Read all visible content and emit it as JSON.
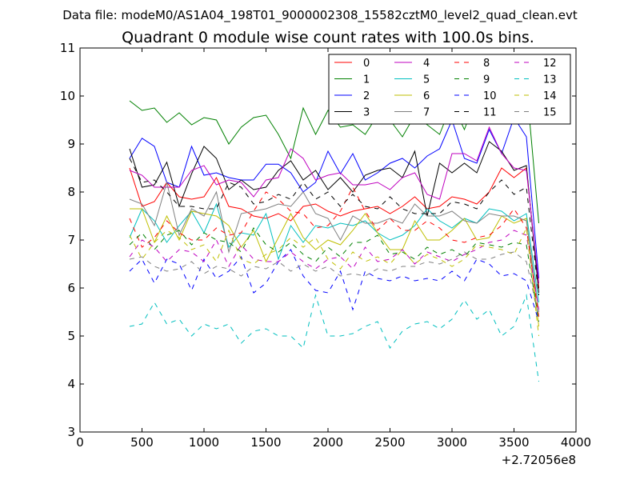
{
  "chart_data": {
    "type": "line",
    "suptitle": "Data file: modeM0/AS1A04_198T01_9000002308_15582cztM0_level2_quad_clean.evt",
    "title": "Quadrant 0 module wise count rates with 100.0s bins.",
    "xlabel": "",
    "ylabel": "",
    "x_offset_label": "+2.72056e8",
    "xlim": [
      0,
      4000
    ],
    "ylim": [
      3,
      11
    ],
    "xticks": [
      0,
      500,
      1000,
      1500,
      2000,
      2500,
      3000,
      3500,
      4000
    ],
    "yticks": [
      3,
      4,
      5,
      6,
      7,
      8,
      9,
      10,
      11
    ],
    "grid": false,
    "legend_position": "top-right",
    "legend_columns": 4,
    "x": [
      400,
      500,
      600,
      700,
      800,
      900,
      1000,
      1100,
      1200,
      1300,
      1400,
      1500,
      1600,
      1700,
      1800,
      1900,
      2000,
      2100,
      2200,
      2300,
      2400,
      2500,
      2600,
      2700,
      2800,
      2900,
      3000,
      3100,
      3200,
      3300,
      3400,
      3500,
      3600,
      3700
    ],
    "series": [
      {
        "name": "0",
        "color": "#ff0000",
        "dash": "solid",
        "values": [
          8.5,
          7.7,
          7.8,
          8.2,
          7.9,
          7.85,
          7.9,
          8.3,
          7.7,
          7.65,
          7.5,
          7.45,
          7.55,
          7.4,
          7.7,
          7.75,
          7.6,
          7.5,
          7.6,
          7.65,
          7.7,
          7.55,
          7.7,
          7.9,
          7.65,
          7.7,
          7.9,
          7.85,
          7.75,
          8.0,
          8.5,
          8.3,
          8.5,
          6.0
        ]
      },
      {
        "name": "1",
        "color": "#008000",
        "dash": "solid",
        "values": [
          9.9,
          9.7,
          9.75,
          9.45,
          9.65,
          9.4,
          9.55,
          9.5,
          9.0,
          9.35,
          9.55,
          9.6,
          9.2,
          8.7,
          9.75,
          9.2,
          9.7,
          9.35,
          9.4,
          9.2,
          9.6,
          9.5,
          9.15,
          9.6,
          9.4,
          9.2,
          9.85,
          9.3,
          10.0,
          9.8,
          9.9,
          9.75,
          10.25,
          7.35
        ]
      },
      {
        "name": "2",
        "color": "#0000ff",
        "dash": "solid",
        "values": [
          8.7,
          9.12,
          8.95,
          8.2,
          8.1,
          8.95,
          8.35,
          8.4,
          8.3,
          8.25,
          8.25,
          8.58,
          8.58,
          8.4,
          8.0,
          8.2,
          8.85,
          8.38,
          8.8,
          8.25,
          8.4,
          8.6,
          8.7,
          8.5,
          8.75,
          8.9,
          9.5,
          8.7,
          8.6,
          9.3,
          8.8,
          9.55,
          9.15,
          6.2
        ]
      },
      {
        "name": "3",
        "color": "#000000",
        "dash": "solid",
        "values": [
          8.9,
          8.1,
          8.15,
          8.62,
          7.7,
          8.38,
          8.95,
          8.7,
          8.05,
          8.25,
          8.05,
          8.1,
          8.45,
          8.65,
          8.25,
          8.45,
          8.05,
          8.3,
          8.0,
          8.35,
          8.45,
          8.5,
          8.3,
          8.85,
          7.5,
          8.6,
          8.4,
          8.6,
          8.4,
          9.05,
          8.85,
          8.45,
          8.55,
          5.9
        ]
      },
      {
        "name": "4",
        "color": "#bf00bf",
        "dash": "solid",
        "values": [
          8.45,
          8.35,
          8.1,
          8.1,
          8.1,
          8.45,
          8.55,
          8.15,
          8.25,
          8.2,
          7.9,
          8.25,
          8.3,
          8.9,
          8.7,
          8.25,
          8.35,
          8.4,
          8.15,
          8.15,
          8.2,
          8.05,
          8.3,
          8.4,
          7.95,
          7.85,
          8.8,
          8.8,
          8.65,
          9.35,
          8.8,
          8.5,
          8.45,
          6.1
        ]
      },
      {
        "name": "5",
        "color": "#00bfbf",
        "dash": "solid",
        "values": [
          7.05,
          7.65,
          7.4,
          6.95,
          7.3,
          7.6,
          7.15,
          7.75,
          6.85,
          7.15,
          7.1,
          7.55,
          6.6,
          7.3,
          6.95,
          7.3,
          7.25,
          7.35,
          7.3,
          7.4,
          7.15,
          7.0,
          7.1,
          7.3,
          7.65,
          7.4,
          7.25,
          7.45,
          7.35,
          7.65,
          7.6,
          7.4,
          7.55,
          5.7
        ]
      },
      {
        "name": "6",
        "color": "#bfbf00",
        "dash": "solid",
        "values": [
          7.65,
          7.65,
          6.95,
          7.5,
          7.0,
          7.6,
          7.55,
          7.5,
          7.3,
          6.85,
          7.2,
          6.55,
          7.05,
          7.55,
          7.05,
          6.8,
          7.0,
          6.9,
          7.2,
          7.55,
          7.15,
          6.8,
          6.8,
          7.4,
          7.0,
          7.0,
          7.2,
          7.45,
          7.0,
          7.05,
          7.5,
          7.35,
          7.45,
          5.2
        ]
      },
      {
        "name": "7",
        "color": "#808080",
        "dash": "solid",
        "values": [
          7.85,
          7.75,
          7.3,
          8.2,
          7.1,
          7.65,
          7.5,
          8.0,
          6.75,
          7.55,
          7.6,
          7.65,
          7.75,
          7.7,
          8.0,
          7.55,
          7.45,
          7.0,
          7.5,
          7.35,
          7.35,
          7.45,
          7.35,
          7.75,
          7.5,
          7.5,
          7.6,
          7.4,
          7.35,
          7.55,
          7.5,
          7.5,
          7.4,
          5.5
        ]
      },
      {
        "name": "8",
        "color": "#ff0000",
        "dash": "dashed",
        "values": [
          7.45,
          6.85,
          7.05,
          7.4,
          7.15,
          7.0,
          7.0,
          7.25,
          7.1,
          7.15,
          7.6,
          8.0,
          7.85,
          7.6,
          7.55,
          7.25,
          7.3,
          7.6,
          8.1,
          7.6,
          7.2,
          7.45,
          7.2,
          7.2,
          7.4,
          7.25,
          7.0,
          6.95,
          7.05,
          7.1,
          7.3,
          7.65,
          7.25,
          5.4
        ]
      },
      {
        "name": "9",
        "color": "#008000",
        "dash": "dashed",
        "values": [
          6.9,
          7.15,
          6.8,
          7.1,
          7.2,
          6.9,
          7.15,
          7.0,
          6.95,
          6.75,
          7.25,
          6.9,
          6.75,
          6.95,
          6.7,
          6.55,
          6.85,
          6.65,
          6.95,
          6.95,
          7.1,
          6.7,
          6.75,
          6.6,
          6.85,
          6.7,
          6.8,
          6.65,
          6.95,
          6.9,
          6.85,
          6.95,
          6.9,
          5.3
        ]
      },
      {
        "name": "10",
        "color": "#0000ff",
        "dash": "dashed",
        "values": [
          6.35,
          6.6,
          6.1,
          6.6,
          6.5,
          5.95,
          6.6,
          6.2,
          6.35,
          6.65,
          5.9,
          6.1,
          6.55,
          6.8,
          6.25,
          5.95,
          5.9,
          6.35,
          5.55,
          6.35,
          6.2,
          6.15,
          6.25,
          6.15,
          6.2,
          6.15,
          6.35,
          6.15,
          6.6,
          6.5,
          6.25,
          6.3,
          6.15,
          5.3
        ]
      },
      {
        "name": "11",
        "color": "#000000",
        "dash": "dashed",
        "values": [
          8.7,
          8.2,
          8.25,
          8.0,
          7.7,
          7.7,
          7.65,
          7.65,
          8.2,
          8.1,
          7.75,
          7.8,
          7.95,
          7.85,
          8.2,
          7.85,
          8.0,
          7.7,
          7.95,
          7.7,
          7.65,
          7.9,
          7.65,
          7.55,
          7.55,
          7.55,
          7.8,
          7.75,
          7.65,
          8.0,
          8.25,
          7.95,
          8.1,
          5.85
        ]
      },
      {
        "name": "12",
        "color": "#bf00bf",
        "dash": "dashed",
        "values": [
          6.65,
          7.0,
          6.85,
          6.55,
          6.8,
          6.75,
          6.55,
          7.0,
          6.45,
          6.9,
          6.6,
          6.55,
          6.55,
          6.75,
          6.55,
          6.4,
          6.6,
          6.65,
          6.4,
          6.85,
          6.55,
          6.6,
          6.8,
          6.5,
          6.75,
          6.65,
          6.55,
          6.7,
          6.8,
          6.95,
          7.0,
          7.2,
          7.1,
          5.55
        ]
      },
      {
        "name": "13",
        "color": "#00bfbf",
        "dash": "dashed",
        "values": [
          5.2,
          5.25,
          5.7,
          5.25,
          5.35,
          5.0,
          5.25,
          5.15,
          5.25,
          4.85,
          5.1,
          5.15,
          5.0,
          5.0,
          4.75,
          5.85,
          5.0,
          5.0,
          5.05,
          5.2,
          5.3,
          4.75,
          5.1,
          5.25,
          5.3,
          5.15,
          5.35,
          5.75,
          5.35,
          5.55,
          5.0,
          5.2,
          5.85,
          4.05
        ]
      },
      {
        "name": "14",
        "color": "#bfbf00",
        "dash": "dashed",
        "values": [
          7.1,
          6.6,
          6.95,
          7.2,
          7.05,
          6.8,
          6.9,
          6.55,
          7.2,
          6.6,
          6.5,
          6.7,
          6.8,
          7.05,
          6.85,
          7.05,
          6.6,
          6.4,
          6.75,
          6.55,
          6.65,
          6.5,
          6.8,
          6.5,
          6.7,
          6.6,
          6.45,
          6.6,
          6.9,
          6.85,
          6.8,
          6.7,
          7.25,
          5.0
        ]
      },
      {
        "name": "15",
        "color": "#808080",
        "dash": "dashed",
        "values": [
          6.6,
          6.65,
          6.45,
          6.35,
          6.4,
          6.55,
          6.3,
          6.45,
          6.4,
          6.25,
          6.45,
          6.4,
          6.55,
          6.35,
          6.5,
          6.35,
          6.45,
          6.25,
          6.3,
          6.25,
          6.4,
          6.35,
          6.45,
          6.45,
          6.55,
          6.5,
          6.6,
          6.75,
          6.6,
          6.6,
          6.7,
          6.75,
          6.55,
          5.4
        ]
      }
    ]
  }
}
